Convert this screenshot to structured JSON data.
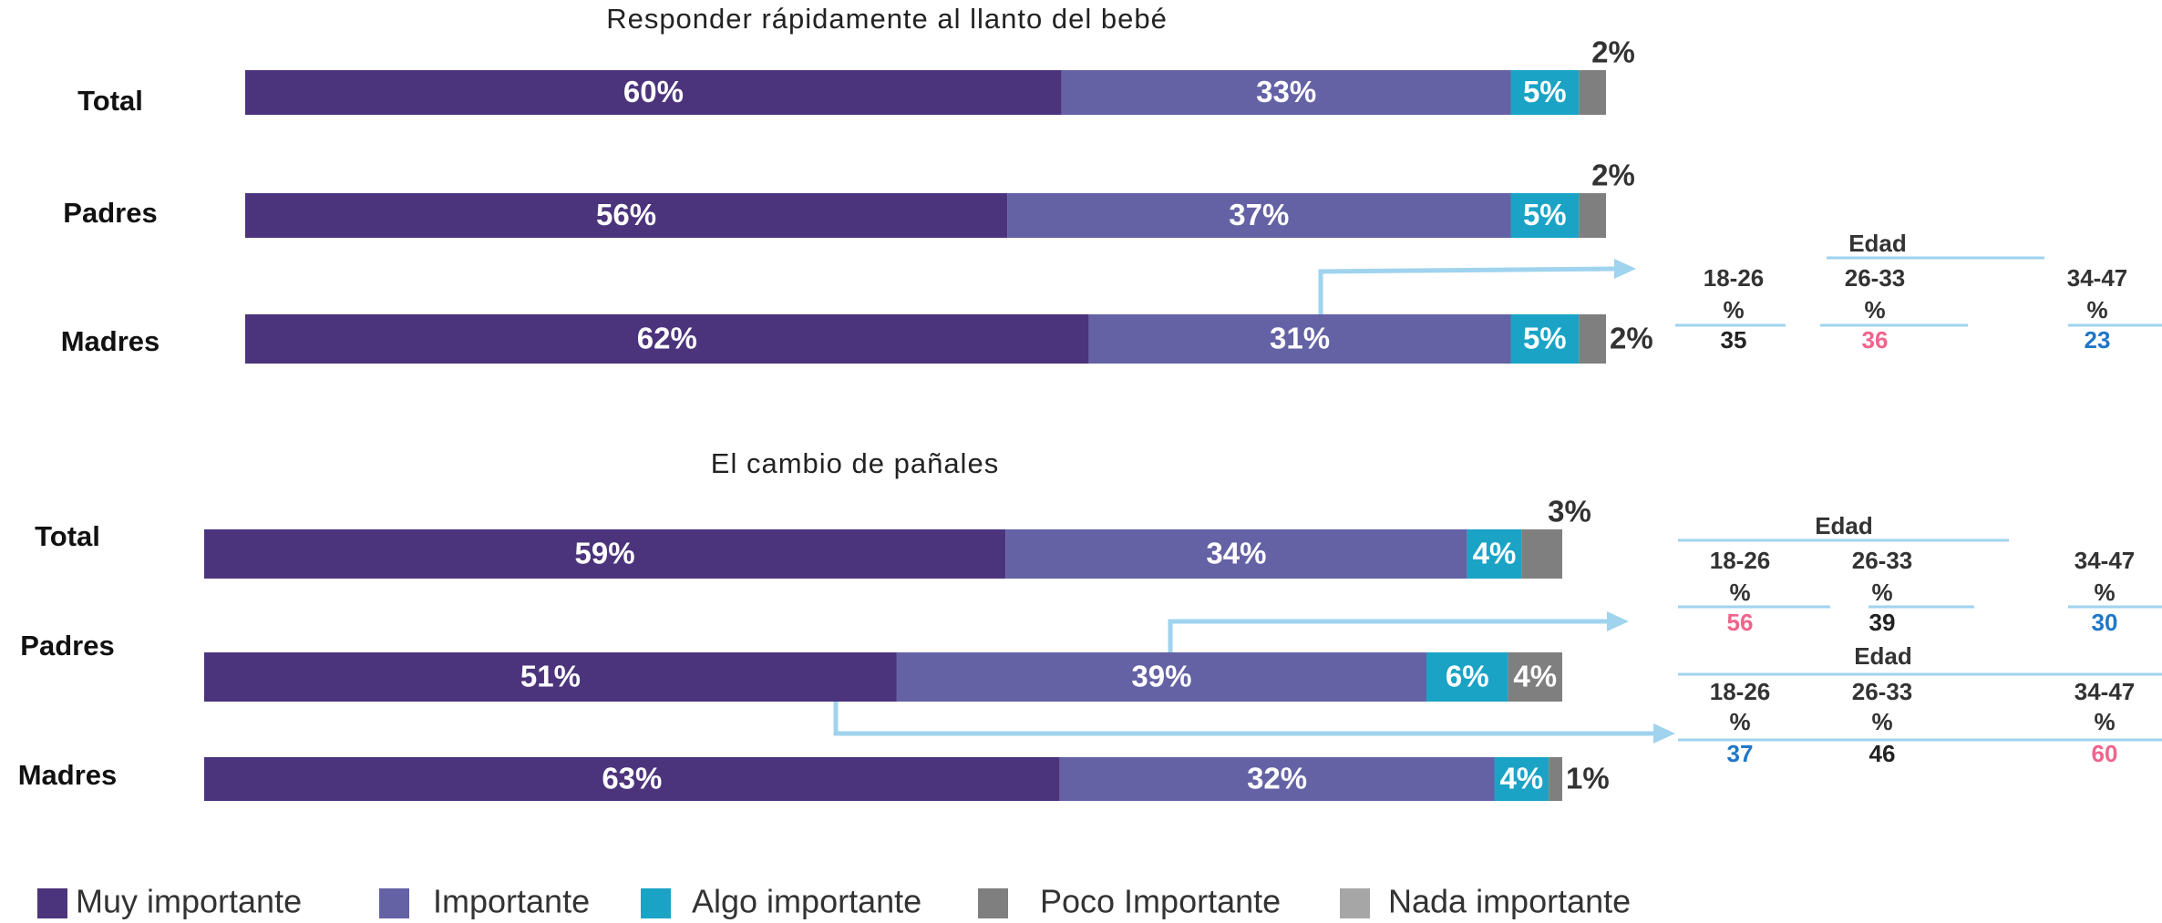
{
  "legend": [
    {
      "name": "Muy importante",
      "color": "#4b347c"
    },
    {
      "name": "Importante",
      "color": "#6462a5"
    },
    {
      "name": "Algo importante",
      "color": "#1ba3c6"
    },
    {
      "name": "Poco Importante",
      "color": "#7f7f7f"
    },
    {
      "name": "Nada importante",
      "color": "#a6a6a6"
    }
  ],
  "chart_data": [
    {
      "type": "stacked-bar-h",
      "title": "Responder rápidamente al llanto del bebé",
      "categories": [
        "Total",
        "Padres",
        "Madres"
      ],
      "xlim": [
        0,
        100
      ],
      "series": [
        {
          "values": [
            60,
            56,
            62
          ],
          "value_labels": [
            "60%",
            "56%",
            "62%"
          ]
        },
        {
          "values": [
            33,
            37,
            31
          ],
          "value_labels": [
            "33%",
            "37%",
            "31%"
          ]
        },
        {
          "values": [
            5,
            5,
            5
          ],
          "value_labels": [
            "5%",
            "5%",
            "5%"
          ]
        },
        {
          "values": [
            2,
            2,
            2
          ],
          "value_labels": [
            "2%",
            "2%",
            "2%"
          ]
        }
      ],
      "tables": [
        {
          "header": "Edad",
          "columns": [
            {
              "label": "18-26",
              "unit": "%"
            },
            {
              "label": "26-33",
              "unit": "%"
            },
            {
              "label": "34-47",
              "unit": "%"
            }
          ],
          "values": [
            35,
            36,
            23
          ],
          "value_colors": [
            "#222222",
            "#f0648c",
            "#1f77c8"
          ]
        }
      ]
    },
    {
      "type": "stacked-bar-h",
      "title": "El cambio de pañales",
      "categories": [
        "Total",
        "Padres",
        "Madres"
      ],
      "xlim": [
        0,
        100
      ],
      "series": [
        {
          "values": [
            59,
            51,
            63
          ],
          "value_labels": [
            "59%",
            "51%",
            "63%"
          ]
        },
        {
          "values": [
            34,
            39,
            32
          ],
          "value_labels": [
            "34%",
            "39%",
            "32%"
          ]
        },
        {
          "values": [
            4,
            6,
            4
          ],
          "value_labels": [
            "4%",
            "6%",
            "4%"
          ]
        },
        {
          "values": [
            3,
            4,
            1
          ],
          "value_labels": [
            "3%",
            "4%",
            "1%"
          ]
        }
      ],
      "tables": [
        {
          "header": "Edad",
          "columns": [
            {
              "label": "18-26",
              "unit": "%"
            },
            {
              "label": "26-33",
              "unit": "%"
            },
            {
              "label": "34-47",
              "unit": "%"
            }
          ],
          "values": [
            56,
            39,
            30
          ],
          "value_colors": [
            "#f0648c",
            "#222222",
            "#1f77c8"
          ]
        },
        {
          "header": "Edad",
          "columns": [
            {
              "label": "18-26",
              "unit": "%"
            },
            {
              "label": "26-33",
              "unit": "%"
            },
            {
              "label": "34-47",
              "unit": "%"
            }
          ],
          "values": [
            37,
            46,
            60
          ],
          "value_colors": [
            "#1f77c8",
            "#222222",
            "#f0648c"
          ]
        }
      ]
    }
  ]
}
